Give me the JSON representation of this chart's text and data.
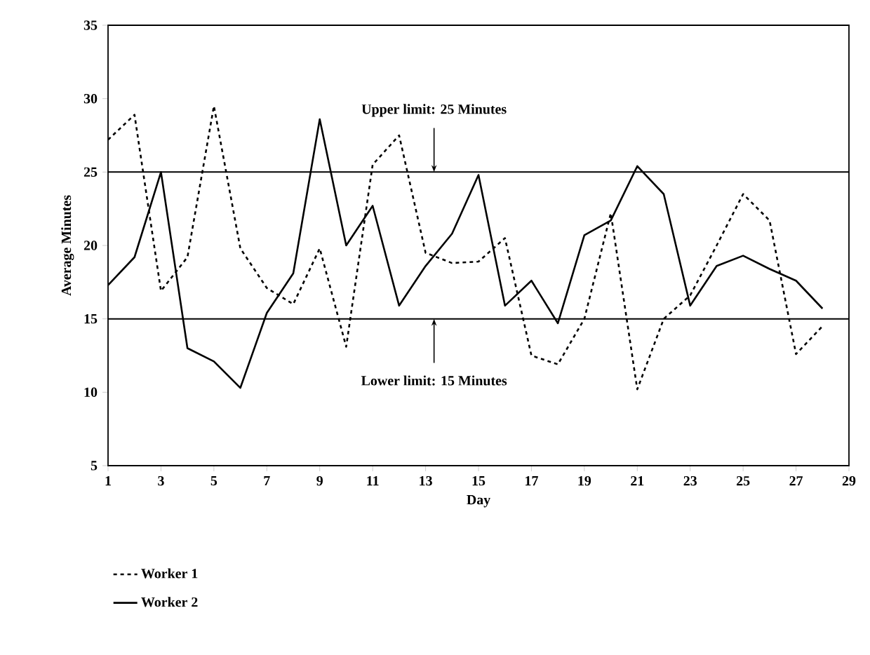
{
  "chart_data": {
    "type": "line",
    "xlabel": "Day",
    "ylabel": "Average Minutes",
    "x": [
      1,
      2,
      3,
      4,
      5,
      6,
      7,
      8,
      9,
      10,
      11,
      12,
      13,
      14,
      15,
      16,
      17,
      18,
      19,
      20,
      21,
      22,
      23,
      24,
      25,
      26,
      27,
      28
    ],
    "series": [
      {
        "name": "Worker 1",
        "color": "#000000",
        "line_style": "dotted",
        "values": [
          27.2,
          28.9,
          16.9,
          19.2,
          29.5,
          19.8,
          17.1,
          16,
          19.8,
          13.1,
          25.5,
          27.5,
          19.5,
          18.8,
          18.9,
          20.5,
          12.5,
          11.9,
          15,
          22.2,
          10.2,
          15,
          16.6,
          20,
          23.5,
          21.7,
          12.6,
          14.5
        ]
      },
      {
        "name": "Worker 2",
        "color": "#000000",
        "line_style": "solid",
        "values": [
          17.3,
          19.2,
          25,
          13,
          12.1,
          10.3,
          15.4,
          18.1,
          28.6,
          20,
          22.7,
          15.9,
          18.6,
          20.8,
          24.8,
          15.9,
          17.6,
          14.7,
          20.7,
          21.7,
          25.4,
          23.5,
          15.9,
          18.6,
          19.3,
          18.4,
          17.6,
          15.7
        ]
      }
    ],
    "xlim": [
      1,
      29
    ],
    "ylim": [
      5,
      35
    ],
    "xticks": [
      1,
      3,
      5,
      7,
      9,
      11,
      13,
      15,
      17,
      19,
      21,
      23,
      25,
      27,
      29
    ],
    "yticks": [
      5,
      10,
      15,
      20,
      25,
      30,
      35
    ],
    "ref_lines": [
      {
        "axis": "y",
        "value": 25,
        "color": "#000000",
        "label": "Upper limit: 25 Minutes"
      },
      {
        "axis": "y",
        "value": 15,
        "color": "#000000",
        "label": "Lower limit: 15 Minutes"
      }
    ],
    "legend": "bottom",
    "grid": false,
    "marker": "none"
  }
}
